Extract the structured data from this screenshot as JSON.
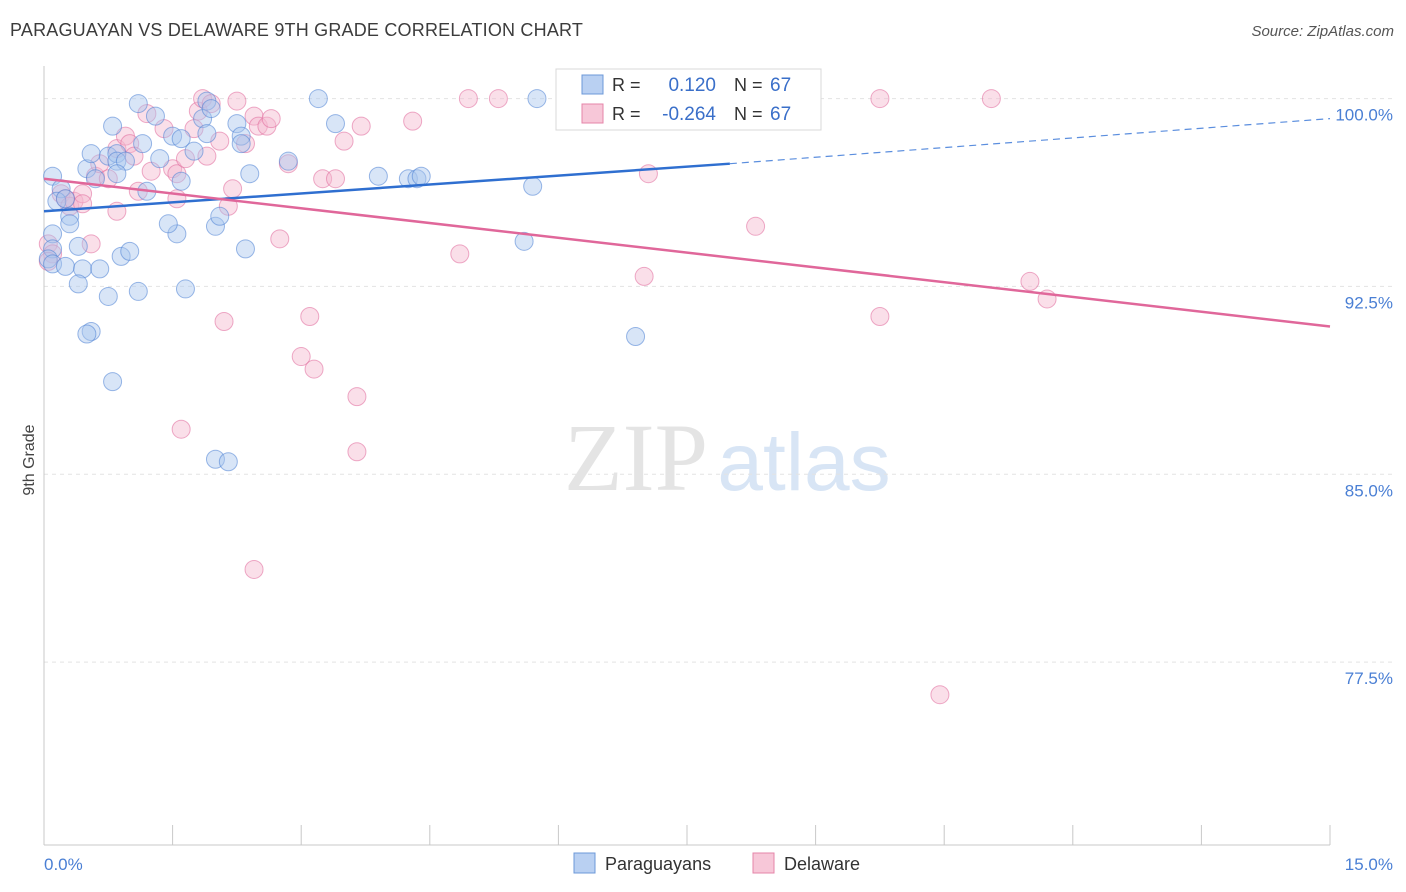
{
  "title": "PARAGUAYAN VS DELAWARE 9TH GRADE CORRELATION CHART",
  "source": "Source: ZipAtlas.com",
  "watermark": {
    "zip": "ZIP",
    "atlas": "atlas"
  },
  "legend": {
    "row1": {
      "r_label": "R =",
      "r_value": "0.120",
      "n_label": "N =",
      "n_value": "67"
    },
    "row2": {
      "r_label": "R =",
      "r_value": "-0.264",
      "n_label": "N =",
      "n_value": "67"
    }
  },
  "colors": {
    "blue": "#4a7fd4",
    "blue_fill": "#a9c5ee",
    "pink": "#e0679a",
    "pink_fill": "#f5b9cf",
    "axis_text": "#4a7fd4",
    "grid": "#e3e3e3"
  },
  "chart_data": {
    "type": "scatter",
    "title": "PARAGUAYAN VS DELAWARE 9TH GRADE CORRELATION CHART",
    "xlabel": "",
    "ylabel": "9th Grade",
    "xlim": [
      0.0,
      15.0
    ],
    "ylim": [
      70.2,
      101.3
    ],
    "x_tick_labels": [
      "0.0%",
      "15.0%"
    ],
    "y_ticks": [
      100.0,
      92.5,
      85.0,
      77.5
    ],
    "y_tick_labels": [
      "100.0%",
      "92.5%",
      "85.0%",
      "77.5%"
    ],
    "legend_entries": [
      "Paraguayans",
      "Delaware"
    ],
    "series": [
      {
        "name": "Paraguayans",
        "r": 0.12,
        "n": 67,
        "trend": {
          "x0": 0.0,
          "y0": 95.5,
          "x1": 8.0,
          "y1": 97.4,
          "dash_to_x": 15.0,
          "dash_to_y": 99.2
        },
        "points": [
          [
            0.1,
            96.9
          ],
          [
            0.2,
            96.4
          ],
          [
            0.15,
            95.9
          ],
          [
            0.3,
            95.3
          ],
          [
            0.3,
            95.0
          ],
          [
            0.1,
            94.6
          ],
          [
            0.1,
            94.0
          ],
          [
            0.05,
            93.6
          ],
          [
            0.1,
            93.4
          ],
          [
            0.25,
            93.3
          ],
          [
            0.45,
            93.2
          ],
          [
            0.65,
            93.2
          ],
          [
            0.4,
            94.1
          ],
          [
            0.9,
            93.7
          ],
          [
            1.0,
            93.9
          ],
          [
            0.4,
            92.6
          ],
          [
            0.75,
            92.1
          ],
          [
            1.1,
            92.3
          ],
          [
            0.55,
            90.7
          ],
          [
            0.5,
            90.6
          ],
          [
            0.8,
            88.7
          ],
          [
            0.5,
            97.2
          ],
          [
            0.55,
            97.8
          ],
          [
            0.75,
            97.7
          ],
          [
            0.85,
            97.8
          ],
          [
            0.85,
            97.5
          ],
          [
            0.95,
            97.5
          ],
          [
            0.85,
            97.0
          ],
          [
            1.15,
            98.2
          ],
          [
            1.2,
            96.3
          ],
          [
            1.35,
            97.6
          ],
          [
            1.3,
            99.3
          ],
          [
            1.1,
            99.8
          ],
          [
            0.8,
            98.9
          ],
          [
            1.5,
            98.5
          ],
          [
            1.6,
            98.4
          ],
          [
            1.6,
            96.7
          ],
          [
            1.75,
            97.9
          ],
          [
            1.85,
            99.2
          ],
          [
            1.9,
            98.6
          ],
          [
            1.9,
            99.9
          ],
          [
            1.95,
            99.6
          ],
          [
            2.25,
            99.0
          ],
          [
            2.3,
            98.5
          ],
          [
            2.3,
            98.2
          ],
          [
            2.4,
            97.0
          ],
          [
            1.55,
            94.6
          ],
          [
            2.0,
            94.9
          ],
          [
            2.05,
            95.3
          ],
          [
            1.65,
            92.4
          ],
          [
            2.35,
            94.0
          ],
          [
            2.85,
            97.5
          ],
          [
            3.2,
            100.0
          ],
          [
            3.4,
            99.0
          ],
          [
            3.9,
            96.9
          ],
          [
            4.25,
            96.8
          ],
          [
            4.35,
            96.8
          ],
          [
            4.4,
            96.9
          ],
          [
            5.75,
            100.0
          ],
          [
            5.7,
            96.5
          ],
          [
            5.6,
            94.3
          ],
          [
            6.9,
            90.5
          ],
          [
            2.0,
            85.6
          ],
          [
            2.15,
            85.5
          ],
          [
            0.25,
            96.0
          ],
          [
            0.6,
            96.8
          ],
          [
            1.45,
            95.0
          ]
        ]
      },
      {
        "name": "Delaware",
        "r": -0.264,
        "n": 67,
        "trend": {
          "x0": 0.0,
          "y0": 96.8,
          "x1": 15.0,
          "y1": 90.9
        },
        "points": [
          [
            0.05,
            94.2
          ],
          [
            0.1,
            93.8
          ],
          [
            0.05,
            93.5
          ],
          [
            0.2,
            96.2
          ],
          [
            0.25,
            96.0
          ],
          [
            0.3,
            95.7
          ],
          [
            0.35,
            95.9
          ],
          [
            0.45,
            96.2
          ],
          [
            0.45,
            95.8
          ],
          [
            0.6,
            96.9
          ],
          [
            0.65,
            97.4
          ],
          [
            0.75,
            96.8
          ],
          [
            0.85,
            95.5
          ],
          [
            0.85,
            98.0
          ],
          [
            0.95,
            98.5
          ],
          [
            1.0,
            98.2
          ],
          [
            1.05,
            97.7
          ],
          [
            1.1,
            96.3
          ],
          [
            1.2,
            99.4
          ],
          [
            1.25,
            97.1
          ],
          [
            1.4,
            98.8
          ],
          [
            1.5,
            97.2
          ],
          [
            1.55,
            97.0
          ],
          [
            1.55,
            96.0
          ],
          [
            1.65,
            97.6
          ],
          [
            1.75,
            98.8
          ],
          [
            1.8,
            99.5
          ],
          [
            1.85,
            100.0
          ],
          [
            1.9,
            97.7
          ],
          [
            1.95,
            99.8
          ],
          [
            2.05,
            98.3
          ],
          [
            2.15,
            95.7
          ],
          [
            2.2,
            96.4
          ],
          [
            2.25,
            99.9
          ],
          [
            2.35,
            98.2
          ],
          [
            2.45,
            99.3
          ],
          [
            2.5,
            98.9
          ],
          [
            2.6,
            98.9
          ],
          [
            2.65,
            99.2
          ],
          [
            2.75,
            94.4
          ],
          [
            2.85,
            97.4
          ],
          [
            3.1,
            91.3
          ],
          [
            3.0,
            89.7
          ],
          [
            3.15,
            89.2
          ],
          [
            3.25,
            96.8
          ],
          [
            3.4,
            96.8
          ],
          [
            3.5,
            98.3
          ],
          [
            3.7,
            98.9
          ],
          [
            3.65,
            88.1
          ],
          [
            3.65,
            85.9
          ],
          [
            4.3,
            99.1
          ],
          [
            4.85,
            93.8
          ],
          [
            4.95,
            100.0
          ],
          [
            5.3,
            100.0
          ],
          [
            7.0,
            92.9
          ],
          [
            7.05,
            97.0
          ],
          [
            8.3,
            94.9
          ],
          [
            9.75,
            91.3
          ],
          [
            9.75,
            100.0
          ],
          [
            10.45,
            76.2
          ],
          [
            11.05,
            100.0
          ],
          [
            11.5,
            92.7
          ],
          [
            11.7,
            92.0
          ],
          [
            2.1,
            91.1
          ],
          [
            1.6,
            86.8
          ],
          [
            2.45,
            81.2
          ],
          [
            0.55,
            94.2
          ]
        ]
      }
    ]
  }
}
